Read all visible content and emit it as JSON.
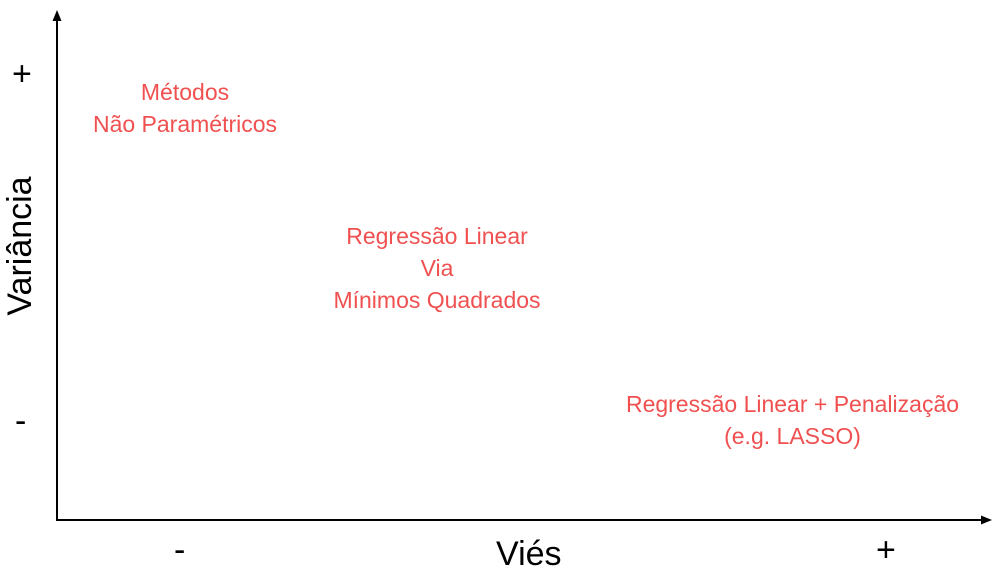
{
  "diagram": {
    "accent_color": "#f05050",
    "axis_color": "#000000",
    "x_axis": {
      "title": "Viés",
      "low_mark": "-",
      "high_mark": "+"
    },
    "y_axis": {
      "title": "Variância",
      "low_mark": "-",
      "high_mark": "+"
    },
    "methods": [
      {
        "lines": [
          "Métodos",
          "Não Paramétricos"
        ]
      },
      {
        "lines": [
          "Regressão Linear",
          "Via",
          "Mínimos Quadrados"
        ]
      },
      {
        "lines": [
          "Regressão Linear + Penalização",
          "(e.g. LASSO)"
        ]
      }
    ]
  }
}
